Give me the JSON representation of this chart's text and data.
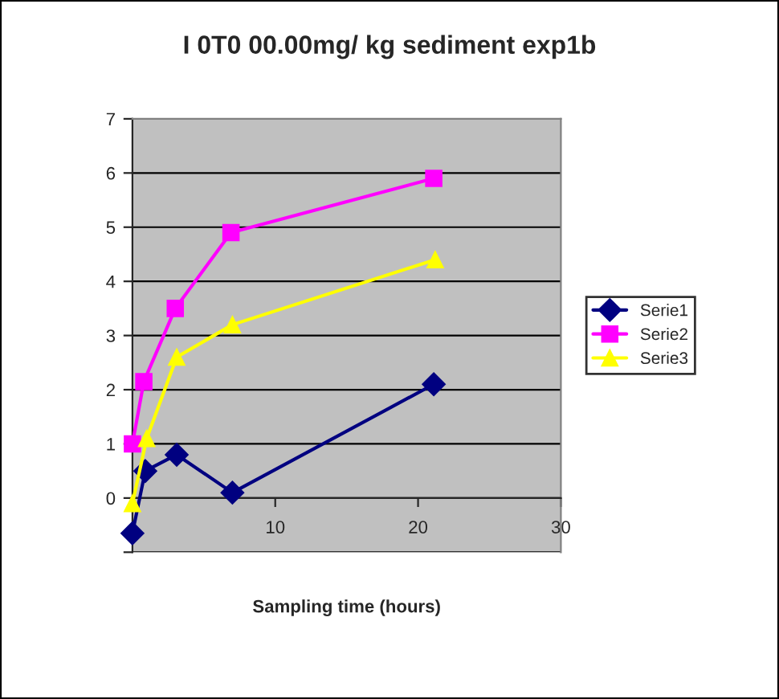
{
  "chart_data": {
    "type": "line",
    "title": "I 0T0 00.00mg/ kg sediment exp1b",
    "xlabel": "Sampling time (hours)",
    "series": [
      {
        "name": "Serie1",
        "color": "#000080",
        "marker": "diamond",
        "x": [
          0,
          0.9,
          3.1,
          7,
          21.1
        ],
        "values": [
          -0.65,
          0.5,
          0.8,
          0.1,
          2.1
        ]
      },
      {
        "name": "Serie2",
        "color": "#ff00ff",
        "marker": "square",
        "x": [
          0,
          0.8,
          3,
          6.9,
          21.1
        ],
        "values": [
          1.0,
          2.15,
          3.5,
          4.9,
          5.9
        ]
      },
      {
        "name": "Serie3",
        "color": "#ffff00",
        "marker": "triangle",
        "x": [
          0,
          1,
          3.1,
          7,
          21.2
        ],
        "values": [
          -0.1,
          1.1,
          2.6,
          3.2,
          4.4
        ]
      }
    ],
    "xlim": [
      0,
      30
    ],
    "xticks": [
      {
        "value": 0,
        "label": null
      },
      10,
      20,
      30
    ],
    "ylim": [
      -1,
      7
    ],
    "yticks": [
      {
        "value": -1,
        "label": null
      },
      0,
      1,
      2,
      3,
      4,
      5,
      6,
      7
    ],
    "grid": "y",
    "legend": "right"
  }
}
